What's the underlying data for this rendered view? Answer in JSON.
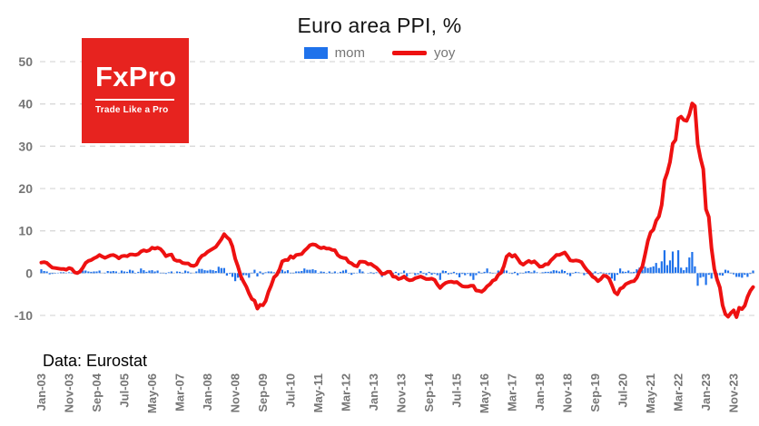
{
  "title": "Euro area PPI, %",
  "source_note": "Data: Eurostat",
  "logo": {
    "brand": "FxPro",
    "tagline": "Trade Like a Pro",
    "bg_color": "#e7231f"
  },
  "legend": [
    {
      "label": "mom"
    },
    {
      "label": "yoy"
    }
  ],
  "chart_data": {
    "type": "bar+line",
    "title": "Euro area PPI, %",
    "x_unit": "month",
    "x_start": "Jan-03",
    "x_tick_interval_months": 10,
    "x_tick_labels": [
      "Jan-03",
      "Nov-03",
      "Sep-04",
      "Jul-05",
      "May-06",
      "Mar-07",
      "Jan-08",
      "Nov-08",
      "Sep-09",
      "Jul-10",
      "May-11",
      "Mar-12",
      "Jan-13",
      "Nov-13",
      "Sep-14",
      "Jul-15",
      "May-16",
      "Mar-17",
      "Jan-18",
      "Nov-18",
      "Sep-19",
      "Jul-20",
      "May-21",
      "Mar-22",
      "Jan-23",
      "Nov-23"
    ],
    "y_ticks": [
      50,
      40,
      30,
      20,
      10,
      0,
      -10
    ],
    "ylim": [
      -13,
      53
    ],
    "grid": "dashed-horizontal",
    "legend_position": "top-center",
    "series": [
      {
        "name": "mom",
        "type": "bar",
        "color": "#1f72eb",
        "values": [
          0.9,
          0.5,
          0.4,
          -0.3,
          -0.2,
          -0.1,
          0.1,
          0.2,
          0.2,
          0.1,
          0.2,
          0.1,
          0.2,
          0.1,
          0.4,
          0.6,
          0.6,
          0.4,
          0.3,
          0.4,
          0.4,
          0.6,
          0.0,
          0.1,
          0.5,
          0.4,
          0.5,
          0.4,
          0.1,
          0.6,
          0.4,
          0.3,
          0.8,
          0.6,
          -0.1,
          0.3,
          1.1,
          0.7,
          0.3,
          0.6,
          0.7,
          0.4,
          0.6,
          0.1,
          0.1,
          -0.2,
          0.2,
          0.4,
          0.0,
          0.4,
          0.3,
          0.1,
          0.6,
          0.4,
          0.1,
          0.0,
          0.4,
          1.0,
          1.0,
          0.7,
          0.6,
          0.8,
          0.7,
          0.5,
          1.5,
          1.2,
          1.2,
          -0.6,
          -0.2,
          -0.9,
          -1.9,
          -1.1,
          -1.7,
          -0.5,
          -0.5,
          -1.1,
          0.1,
          0.8,
          -0.8,
          0.4,
          -0.3,
          0.2,
          0.4,
          0.4,
          0.2,
          0.1,
          0.8,
          0.8,
          0.4,
          0.7,
          0.1,
          0.1,
          0.4,
          0.4,
          0.5,
          1.1,
          0.8,
          0.8,
          0.9,
          0.7,
          -0.1,
          0.4,
          0.3,
          -0.1,
          0.4,
          0.1,
          0.4,
          0.1,
          0.3,
          0.6,
          0.8,
          -0.1,
          -0.4,
          -0.1,
          0.1,
          0.9,
          0.4,
          0.0,
          -0.1,
          0.2,
          -0.2,
          0.2,
          0.1,
          -0.9,
          -0.5,
          0.3,
          0.1,
          -0.2,
          0.3,
          -0.5,
          0.1,
          0.6,
          -0.8,
          -0.1,
          0.0,
          -0.5,
          -0.3,
          0.5,
          -0.2,
          -0.5,
          0.3,
          -0.4,
          -0.2,
          -0.5,
          -1.6,
          0.6,
          0.5,
          -0.3,
          -0.2,
          0.3,
          -0.3,
          -1.0,
          -0.2,
          -0.5,
          -0.2,
          -0.7,
          -1.6,
          -0.5,
          0.4,
          -0.1,
          0.3,
          1.1,
          0.2,
          -0.1,
          0.1,
          0.6,
          0.3,
          0.8,
          0.6,
          0.1,
          -0.2,
          0.3,
          -0.5,
          0.1,
          -0.1,
          0.4,
          0.5,
          0.2,
          0.6,
          0.2,
          0.0,
          0.2,
          0.3,
          0.3,
          0.4,
          0.7,
          0.6,
          0.4,
          0.8,
          0.5,
          -0.3,
          -0.7,
          -0.1,
          0.3,
          0.2,
          0.0,
          -0.5,
          -0.2,
          0.0,
          -0.5,
          0.4,
          -0.2,
          0.2,
          0.1,
          -0.2,
          -0.3,
          -1.3,
          -1.8,
          -0.4,
          1.1,
          0.4,
          0.3,
          0.6,
          0.2,
          0.3,
          0.9,
          1.3,
          0.8,
          1.5,
          1.2,
          1.4,
          1.6,
          2.4,
          1.2,
          2.8,
          5.4,
          1.9,
          3.0,
          5.1,
          1.4,
          5.4,
          1.3,
          0.7,
          1.4,
          3.7,
          5.0,
          1.6,
          -3.0,
          -1.1,
          -0.9,
          -2.8,
          -0.4,
          -1.3,
          -0.1,
          -1.6,
          -0.5,
          -0.6,
          0.8,
          0.6,
          0.1,
          -0.3,
          -0.9,
          -0.9,
          -1.1,
          -0.4,
          -0.9,
          -0.2,
          0.6
        ]
      },
      {
        "name": "yoy",
        "type": "line",
        "color": "#ee1111",
        "values": [
          2.5,
          2.6,
          2.4,
          1.8,
          1.3,
          1.2,
          1.1,
          1.0,
          1.0,
          0.8,
          1.2,
          1.0,
          0.2,
          0.0,
          0.4,
          1.3,
          2.4,
          2.9,
          3.1,
          3.5,
          3.8,
          4.3,
          3.9,
          3.6,
          3.9,
          4.2,
          4.3,
          4.0,
          3.5,
          4.0,
          4.1,
          4.0,
          4.4,
          4.4,
          4.3,
          4.5,
          5.1,
          5.4,
          5.2,
          5.4,
          6.0,
          5.8,
          6.0,
          5.7,
          5.0,
          4.0,
          4.3,
          4.4,
          3.2,
          2.9,
          2.9,
          2.4,
          2.3,
          2.3,
          1.8,
          1.7,
          2.0,
          3.3,
          4.1,
          4.4,
          5.0,
          5.4,
          5.8,
          6.2,
          7.1,
          8.0,
          9.2,
          8.5,
          7.9,
          6.3,
          3.4,
          1.6,
          -0.7,
          -2.0,
          -3.2,
          -4.8,
          -6.1,
          -6.5,
          -8.4,
          -7.5,
          -7.6,
          -6.6,
          -4.4,
          -2.9,
          -1.0,
          -0.4,
          0.9,
          2.8,
          3.1,
          3.1,
          4.0,
          3.6,
          4.3,
          4.4,
          4.5,
          5.3,
          5.9,
          6.6,
          6.8,
          6.7,
          6.2,
          5.9,
          6.1,
          5.8,
          5.8,
          5.5,
          5.4,
          4.3,
          3.8,
          3.6,
          3.5,
          2.6,
          2.3,
          1.8,
          1.6,
          2.7,
          2.7,
          2.6,
          2.1,
          2.2,
          1.7,
          1.3,
          0.6,
          -0.2,
          -0.1,
          0.3,
          0.3,
          -0.8,
          -0.9,
          -1.4,
          -1.2,
          -0.8,
          -1.4,
          -1.7,
          -1.6,
          -1.2,
          -1.0,
          -0.8,
          -1.1,
          -1.4,
          -1.4,
          -1.3,
          -1.6,
          -2.7,
          -3.5,
          -2.8,
          -2.3,
          -2.1,
          -2.0,
          -2.2,
          -2.1,
          -2.6,
          -3.1,
          -3.2,
          -3.2,
          -3.0,
          -3.0,
          -4.1,
          -4.2,
          -4.4,
          -3.9,
          -3.1,
          -2.6,
          -1.8,
          -1.5,
          -0.4,
          0.1,
          1.6,
          3.9,
          4.5,
          3.9,
          4.3,
          3.4,
          2.4,
          2.0,
          2.5,
          2.9,
          2.5,
          2.8,
          2.2,
          1.5,
          1.6,
          2.1,
          2.1,
          3.0,
          3.6,
          4.3,
          4.3,
          4.6,
          4.9,
          4.0,
          3.0,
          2.9,
          3.0,
          2.9,
          2.6,
          1.6,
          0.7,
          0.1,
          -0.8,
          -1.2,
          -1.9,
          -1.4,
          -0.6,
          -0.7,
          -1.3,
          -2.8,
          -4.5,
          -5.0,
          -3.7,
          -3.4,
          -2.6,
          -2.3,
          -2.0,
          -1.9,
          -1.1,
          0.4,
          1.5,
          4.4,
          7.6,
          9.6,
          10.3,
          12.4,
          13.4,
          16.1,
          21.9,
          23.7,
          26.3,
          30.6,
          31.5,
          36.5,
          37.0,
          36.2,
          36.0,
          37.5,
          40.1,
          39.5,
          30.5,
          27.2,
          24.6,
          15.1,
          13.3,
          5.9,
          1.0,
          -1.5,
          -3.4,
          -7.6,
          -9.7,
          -10.3,
          -9.4,
          -8.8,
          -10.4,
          -8.2,
          -8.5,
          -7.7,
          -5.6,
          -4.2,
          -3.3
        ]
      }
    ]
  }
}
